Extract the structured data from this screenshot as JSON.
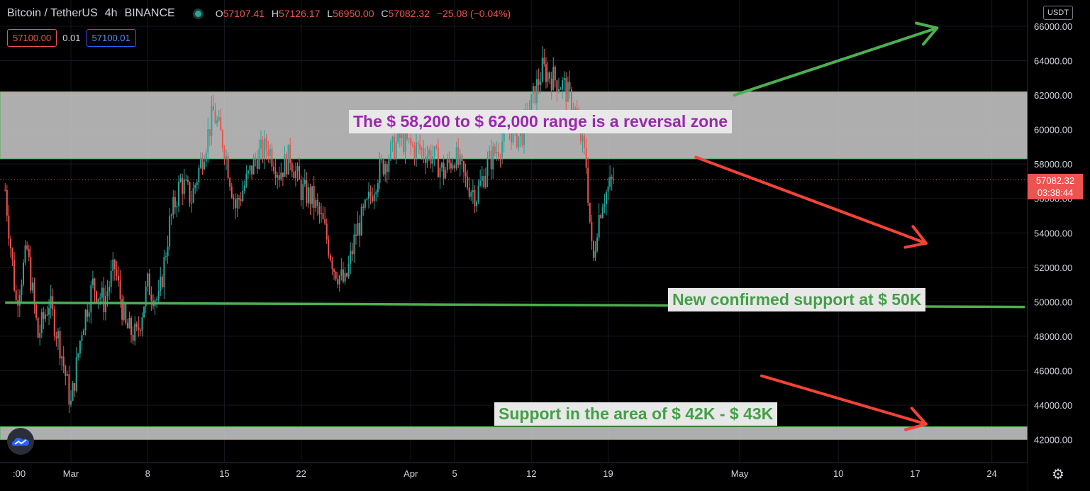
{
  "header": {
    "symbol": "Bitcoin / TetherUS",
    "interval": "4h",
    "exchange": "BINANCE",
    "ohlc": [
      {
        "k": "O",
        "v": "57107.41"
      },
      {
        "k": "H",
        "v": "57126.17"
      },
      {
        "k": "L",
        "v": "56950.00"
      },
      {
        "k": "C",
        "v": "57082.32"
      }
    ],
    "change": "−25.08 (−0.04%)"
  },
  "order_panel": {
    "sell_price": "57100.00",
    "quantity": "0.01",
    "buy_price": "57100.01"
  },
  "currency_label": "USDT",
  "last_price_tag": {
    "price": "57082.32",
    "countdown": "03:38:44"
  },
  "annotations": {
    "reversal": "The $ 58,200 to $ 62,000 range is a reversal zone",
    "support50": "New confirmed support at $ 50K",
    "support42": "Support in the area of $ 42K - $ 43K"
  },
  "colors": {
    "up": "#26a69a",
    "down": "#ef5350",
    "green_line": "#4caf50",
    "zone": "#c8c8c8"
  },
  "icons": {
    "logo": "tradingview-cloud-icon",
    "settings": "gear-icon"
  },
  "chart_data": {
    "type": "candlestick",
    "y_axis": {
      "min": 41000,
      "max": 67000,
      "ticks": [
        42000,
        44000,
        46000,
        48000,
        50000,
        52000,
        54000,
        56000,
        58000,
        60000,
        62000,
        64000,
        66000
      ],
      "tick_labels": [
        "42000.00",
        "44000.00",
        "46000.00",
        "48000.00",
        "50000.00",
        "52000.00",
        "54000.00",
        "56000.00",
        "58000.00",
        "60000.00",
        "62000.00",
        "64000.00",
        "66000.00"
      ]
    },
    "x_axis": {
      "ticks": [
        {
          "label": ":00",
          "day": -5.3
        },
        {
          "label": "Mar",
          "day": 0
        },
        {
          "label": "8",
          "day": 7
        },
        {
          "label": "15",
          "day": 14
        },
        {
          "label": "22",
          "day": 21
        },
        {
          "label": "Apr",
          "day": 31
        },
        {
          "label": "5",
          "day": 35
        },
        {
          "label": "12",
          "day": 42
        },
        {
          "label": "19",
          "day": 49
        },
        {
          "label": "May",
          "day": 61
        },
        {
          "label": "10",
          "day": 70
        },
        {
          "label": "17",
          "day": 77
        },
        {
          "label": "24",
          "day": 84
        }
      ]
    },
    "zones": [
      {
        "from": 58300,
        "to": 62200
      },
      {
        "from": 42000,
        "to": 42750
      }
    ],
    "support_line": {
      "start_day": -6,
      "start_price": 49950,
      "end_day": 87,
      "end_price": 49700
    },
    "price_path": [
      [
        -6,
        56500
      ],
      [
        -5,
        50000
      ],
      [
        -4,
        53000
      ],
      [
        -3,
        48000
      ],
      [
        -2,
        50000
      ],
      [
        -1,
        47500
      ],
      [
        0,
        44000
      ],
      [
        1,
        48500
      ],
      [
        2,
        51000
      ],
      [
        3,
        50000
      ],
      [
        4,
        52000
      ],
      [
        5,
        48500
      ],
      [
        6,
        48000
      ],
      [
        7,
        51000
      ],
      [
        8,
        50000
      ],
      [
        9,
        54500
      ],
      [
        10,
        57000
      ],
      [
        11,
        56000
      ],
      [
        12,
        58500
      ],
      [
        13,
        61000
      ],
      [
        14,
        59000
      ],
      [
        15,
        55500
      ],
      [
        16,
        57000
      ],
      [
        17,
        58500
      ],
      [
        18,
        59000
      ],
      [
        19,
        57500
      ],
      [
        20,
        58500
      ],
      [
        21,
        56500
      ],
      [
        22,
        56000
      ],
      [
        23,
        54500
      ],
      [
        24,
        52000
      ],
      [
        25,
        51000
      ],
      [
        26,
        54000
      ],
      [
        27,
        55500
      ],
      [
        28,
        57500
      ],
      [
        29,
        58500
      ],
      [
        30,
        59500
      ],
      [
        31,
        59000
      ],
      [
        32,
        58800
      ],
      [
        33,
        58500
      ],
      [
        34,
        57500
      ],
      [
        35,
        58500
      ],
      [
        36,
        57000
      ],
      [
        37,
        56200
      ],
      [
        38,
        58000
      ],
      [
        39,
        59000
      ],
      [
        40,
        60000
      ],
      [
        41,
        59500
      ],
      [
        42,
        61500
      ],
      [
        43,
        63500
      ],
      [
        44,
        63000
      ],
      [
        45,
        62500
      ],
      [
        46,
        61000
      ],
      [
        47,
        58000
      ],
      [
        47.6,
        52000
      ],
      [
        48,
        54500
      ],
      [
        48.5,
        56000
      ],
      [
        49.5,
        57082
      ]
    ],
    "annotation_arrows": [
      {
        "color": "green",
        "from": [
          60.5,
          62000
        ],
        "to": [
          79,
          65900
        ]
      },
      {
        "color": "red",
        "from": [
          57,
          58400
        ],
        "to": [
          78,
          53400
        ]
      },
      {
        "color": "red",
        "from": [
          63,
          45700
        ],
        "to": [
          78,
          42900
        ]
      }
    ]
  }
}
